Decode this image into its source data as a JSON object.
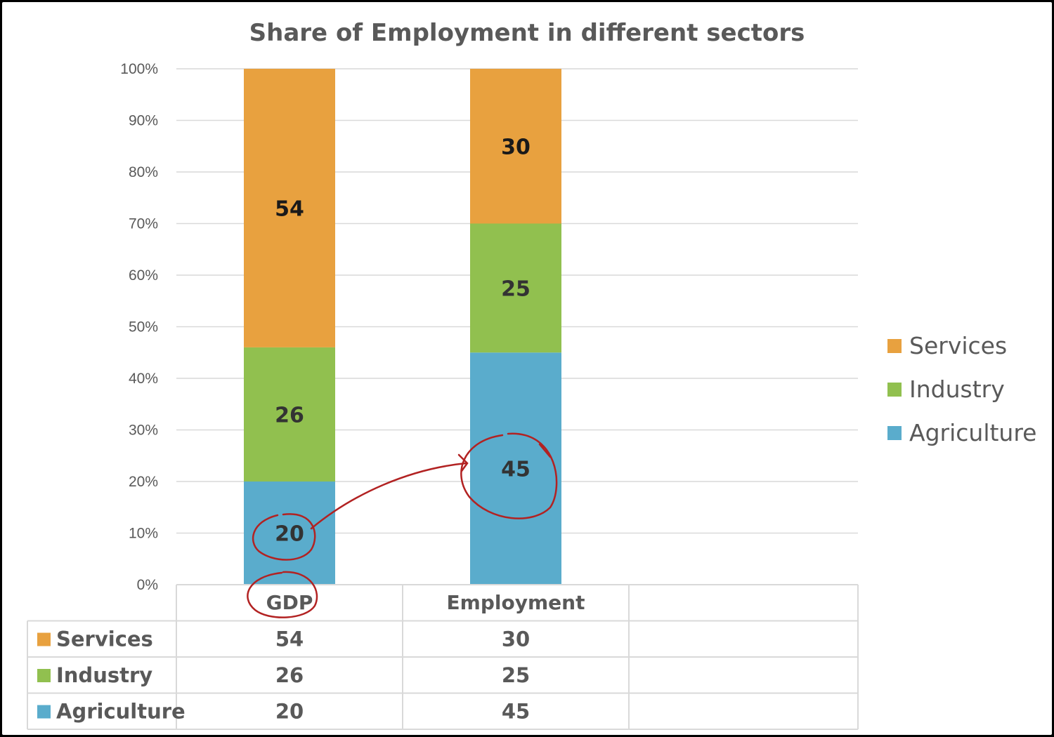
{
  "chart_data": {
    "type": "bar",
    "stacked": true,
    "percent_stacked": true,
    "title": "Share of Employment in different sectors",
    "categories": [
      "GDP",
      "Employment"
    ],
    "series": [
      {
        "name": "Agriculture",
        "values": [
          20,
          45
        ],
        "color": "#5aaccc"
      },
      {
        "name": "Industry",
        "values": [
          26,
          25
        ],
        "color": "#91c04f"
      },
      {
        "name": "Services",
        "values": [
          54,
          30
        ],
        "color": "#e8a13f"
      }
    ],
    "y_ticks": [
      "0%",
      "10%",
      "20%",
      "30%",
      "40%",
      "50%",
      "60%",
      "70%",
      "80%",
      "90%",
      "100%"
    ],
    "ylim": [
      0,
      100
    ],
    "grid": true,
    "legend": "right",
    "legend_order": [
      "Services",
      "Industry",
      "Agriculture"
    ],
    "data_table": true,
    "table_row_order": [
      "Services",
      "Industry",
      "Agriculture"
    ]
  }
}
